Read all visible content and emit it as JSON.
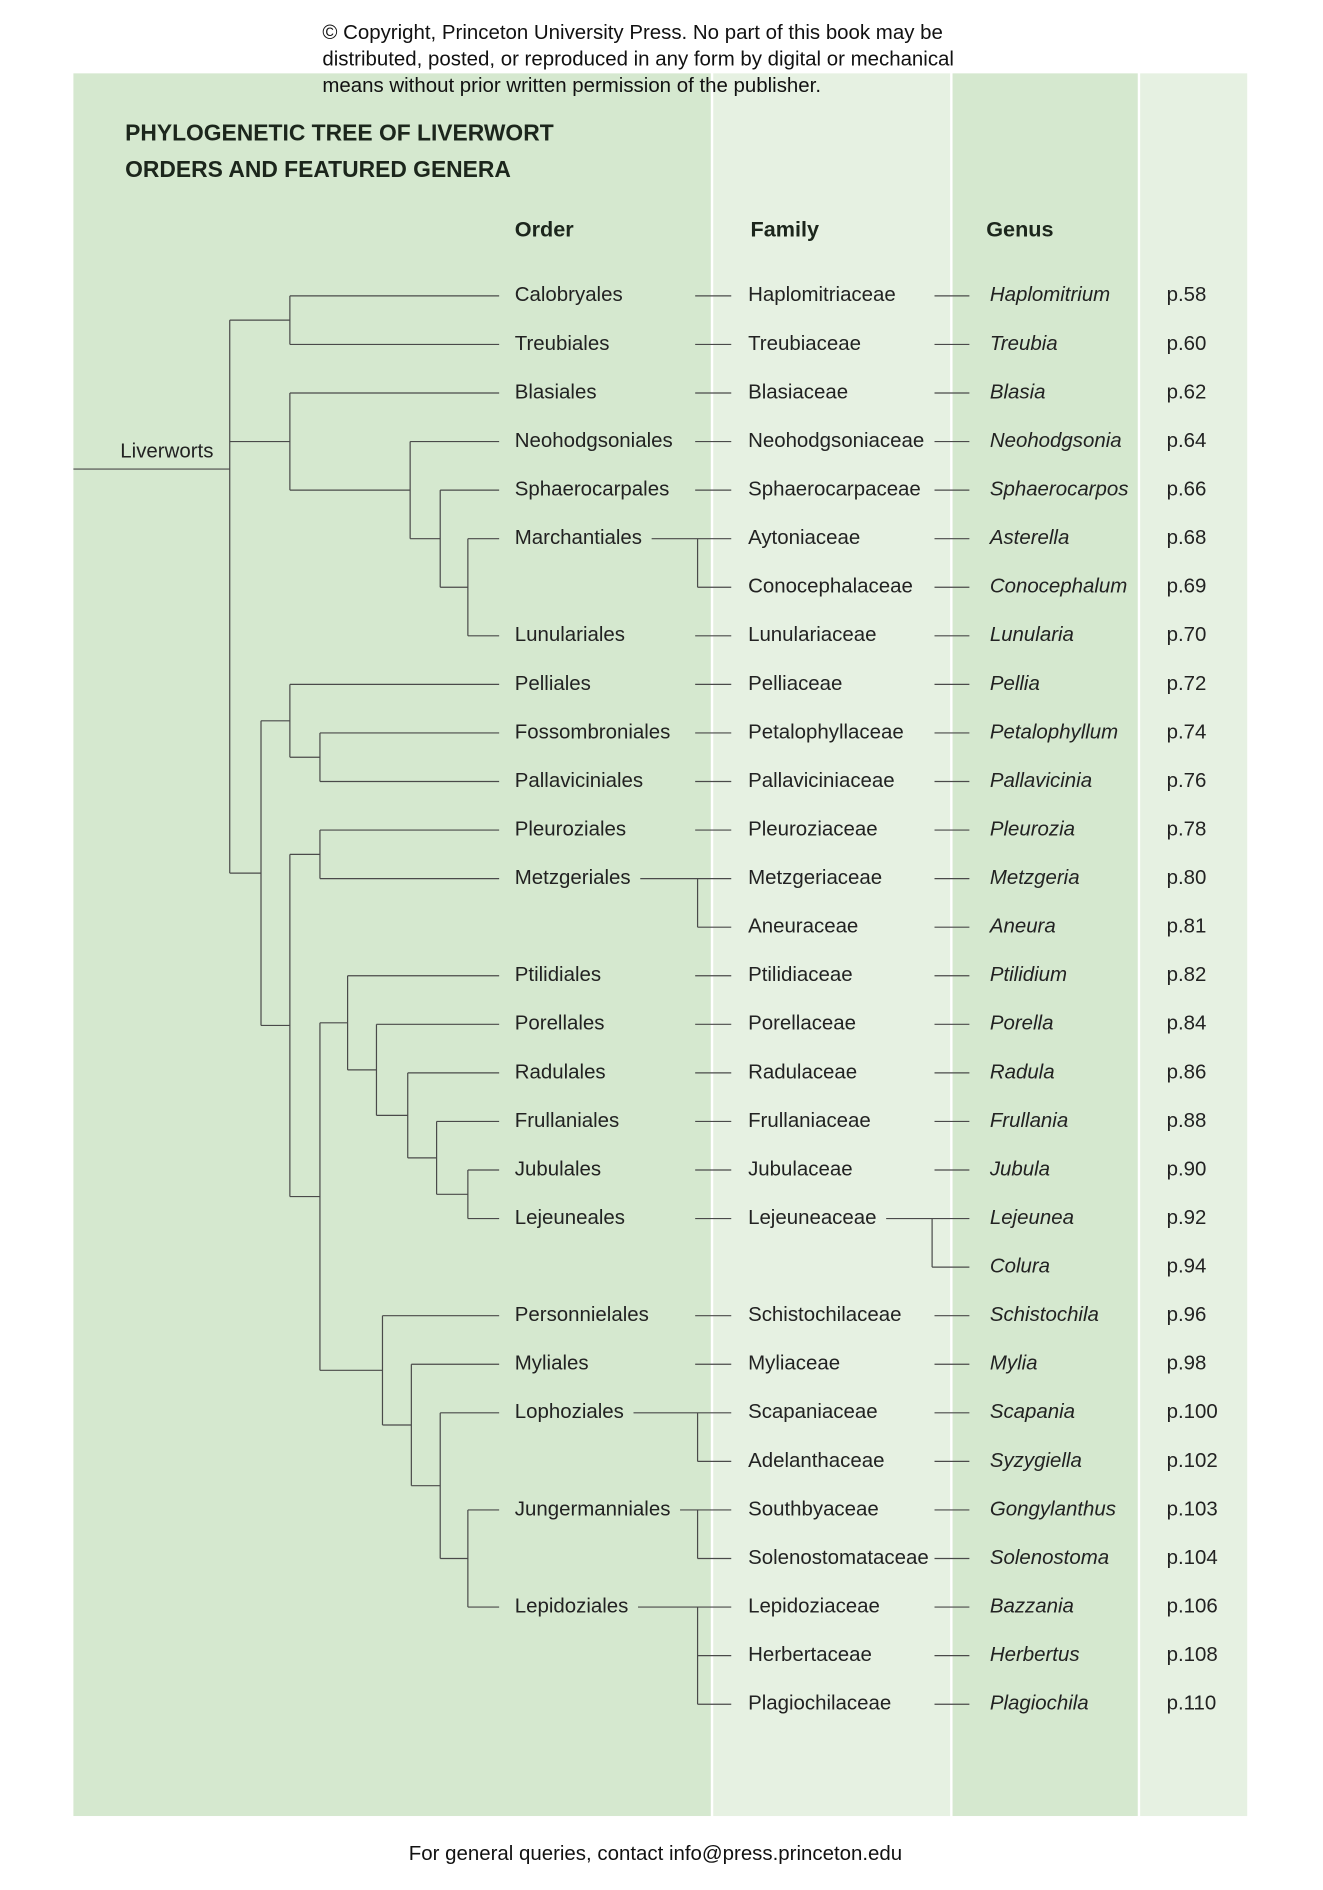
{
  "copyright": [
    "© Copyright, Princeton University Press. No part of this book may be",
    "distributed, posted, or reproduced in any form by digital or mechanical",
    "means without prior written permission of the publisher."
  ],
  "title": [
    "PHYLOGENETIC TREE OF LIVERWORT",
    "ORDERS AND FEATURED GENERA"
  ],
  "headers": {
    "order": "Order",
    "family": "Family",
    "genus": "Genus"
  },
  "root": "Liverworts",
  "rows": [
    [
      "Calobryales",
      "Haplomitriaceae",
      "Haplomitrium",
      "p.58"
    ],
    [
      "Treubiales",
      "Treubiaceae",
      "Treubia",
      "p.60"
    ],
    [
      "Blasiales",
      "Blasiaceae",
      "Blasia",
      "p.62"
    ],
    [
      "Neohodgsoniales",
      "Neohodgsoniaceae",
      "Neohodgsonia",
      "p.64"
    ],
    [
      "Sphaerocarpales",
      "Sphaerocarpaceae",
      "Sphaerocarpos",
      "p.66"
    ],
    [
      "Marchantiales",
      "Aytoniaceae",
      "Asterella",
      "p.68"
    ],
    [
      null,
      "Conocephalaceae",
      "Conocephalum",
      "p.69"
    ],
    [
      "Lunulariales",
      "Lunulariaceae",
      "Lunularia",
      "p.70"
    ],
    [
      "Pelliales",
      "Pelliaceae",
      "Pellia",
      "p.72"
    ],
    [
      "Fossombroniales",
      "Petalophyllaceae",
      "Petalophyllum",
      "p.74"
    ],
    [
      "Pallaviciniales",
      "Pallaviciniaceae",
      "Pallavicinia",
      "p.76"
    ],
    [
      "Pleuroziales",
      "Pleuroziaceae",
      "Pleurozia",
      "p.78"
    ],
    [
      "Metzgeriales",
      "Metzgeriaceae",
      "Metzgeria",
      "p.80"
    ],
    [
      null,
      "Aneuraceae",
      "Aneura",
      "p.81"
    ],
    [
      "Ptilidiales",
      "Ptilidiaceae",
      "Ptilidium",
      "p.82"
    ],
    [
      "Porellales",
      "Porellaceae",
      "Porella",
      "p.84"
    ],
    [
      "Radulales",
      "Radulaceae",
      "Radula",
      "p.86"
    ],
    [
      "Frullaniales",
      "Frullaniaceae",
      "Frullania",
      "p.88"
    ],
    [
      "Jubulales",
      "Jubulaceae",
      "Jubula",
      "p.90"
    ],
    [
      "Lejeuneales",
      "Lejeuneaceae",
      "Lejeunea",
      "p.92"
    ],
    [
      null,
      null,
      "Colura",
      "p.94"
    ],
    [
      "Personnielales",
      "Schistochilaceae",
      "Schistochila",
      "p.96"
    ],
    [
      "Myliales",
      "Myliaceae",
      "Mylia",
      "p.98"
    ],
    [
      "Lophoziales",
      "Scapaniaceae",
      "Scapania",
      "p.100"
    ],
    [
      null,
      "Adelanthaceae",
      "Syzygiella",
      "p.102"
    ],
    [
      "Jungermanniales",
      "Southbyaceae",
      "Gongylanthus",
      "p.103"
    ],
    [
      null,
      "Solenostomataceae",
      "Solenostoma",
      "p.104"
    ],
    [
      "Lepidoziales",
      "Lepidoziaceae",
      "Bazzania",
      "p.106"
    ],
    [
      null,
      "Herbertaceae",
      "Herbertus",
      "p.108"
    ],
    [
      null,
      "Plagiochilaceae",
      "Plagiochila",
      "p.110"
    ]
  ],
  "footer": "For general queries, contact info@press.princeton.edu"
}
